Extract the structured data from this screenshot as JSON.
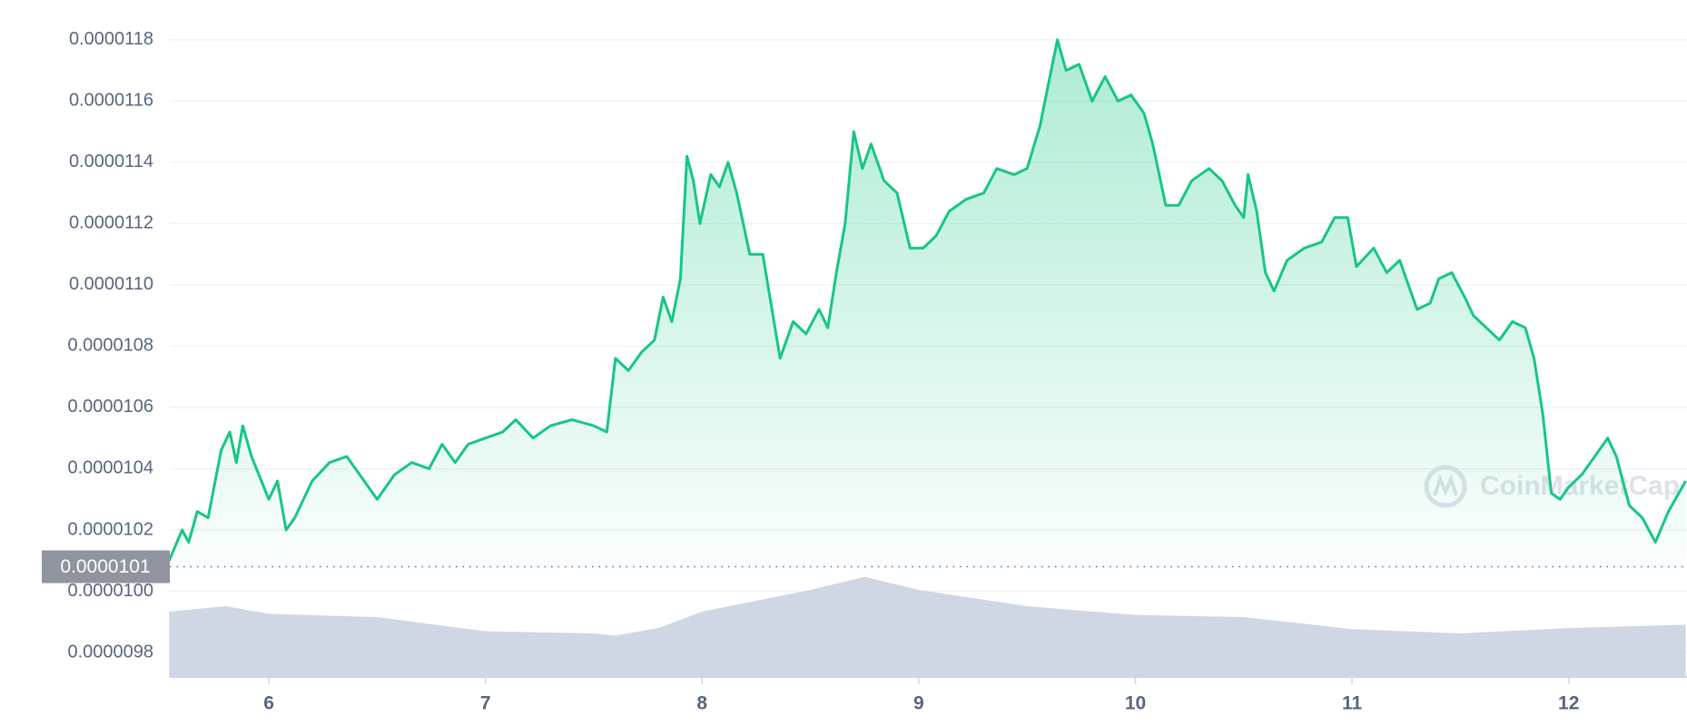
{
  "chart_data": {
    "type": "line",
    "watermark": "CoinMarketCap",
    "xlim": [
      5.543,
      12.546
    ],
    "xticks": [
      6,
      7,
      8,
      9,
      10,
      11,
      12
    ],
    "ylim": [
      9.72e-06,
      1.193e-05
    ],
    "yticks": [
      9.8e-06,
      {
        "value": 1e-05,
        "label": "0.0000100"
      },
      1.02e-05,
      1.04e-05,
      1.06e-05,
      1.08e-05,
      {
        "value": 1.1e-05,
        "label": "0.0000110"
      },
      1.12e-05,
      1.14e-05,
      1.16e-05,
      1.18e-05
    ],
    "grid": true,
    "current_price": {
      "value": 1.008e-05,
      "label": "0.0000101"
    },
    "price": {
      "color": "#16c784",
      "x": [
        5.54,
        5.57,
        5.6,
        5.63,
        5.67,
        5.72,
        5.78,
        5.82,
        5.85,
        5.88,
        5.92,
        6.0,
        6.04,
        6.08,
        6.12,
        6.2,
        6.28,
        6.36,
        6.42,
        6.5,
        6.58,
        6.66,
        6.74,
        6.8,
        6.86,
        6.92,
        7.0,
        7.08,
        7.14,
        7.22,
        7.3,
        7.4,
        7.5,
        7.56,
        7.6,
        7.66,
        7.72,
        7.78,
        7.82,
        7.86,
        7.9,
        7.93,
        7.96,
        7.99,
        8.04,
        8.08,
        8.12,
        8.16,
        8.22,
        8.28,
        8.36,
        8.42,
        8.48,
        8.54,
        8.58,
        8.62,
        8.66,
        8.7,
        8.74,
        8.78,
        8.84,
        8.9,
        8.96,
        9.02,
        9.08,
        9.14,
        9.22,
        9.3,
        9.36,
        9.44,
        9.5,
        9.56,
        9.6,
        9.64,
        9.68,
        9.74,
        9.8,
        9.86,
        9.92,
        9.98,
        10.04,
        10.08,
        10.14,
        10.2,
        10.26,
        10.34,
        10.4,
        10.46,
        10.5,
        10.52,
        10.56,
        10.6,
        10.64,
        10.7,
        10.78,
        10.86,
        10.92,
        10.98,
        11.02,
        11.1,
        11.16,
        11.22,
        11.26,
        11.3,
        11.36,
        11.4,
        11.46,
        11.52,
        11.56,
        11.62,
        11.68,
        11.74,
        11.8,
        11.84,
        11.88,
        11.92,
        11.96,
        12.0,
        12.06,
        12.12,
        12.18,
        12.22,
        12.28,
        12.34,
        12.4,
        12.46,
        12.54
      ],
      "values": [
        1.01e-05,
        1.015e-05,
        1.02e-05,
        1.016e-05,
        1.026e-05,
        1.024e-05,
        1.046e-05,
        1.052e-05,
        1.042e-05,
        1.054e-05,
        1.044e-05,
        1.03e-05,
        1.036e-05,
        1.02e-05,
        1.024e-05,
        1.036e-05,
        1.042e-05,
        1.044e-05,
        1.038e-05,
        1.03e-05,
        1.038e-05,
        1.042e-05,
        1.04e-05,
        1.048e-05,
        1.042e-05,
        1.048e-05,
        1.05e-05,
        1.052e-05,
        1.056e-05,
        1.05e-05,
        1.054e-05,
        1.056e-05,
        1.054e-05,
        1.052e-05,
        1.076e-05,
        1.072e-05,
        1.078e-05,
        1.082e-05,
        1.096e-05,
        1.088e-05,
        1.102e-05,
        1.142e-05,
        1.134e-05,
        1.12e-05,
        1.136e-05,
        1.132e-05,
        1.14e-05,
        1.13e-05,
        1.11e-05,
        1.11e-05,
        1.076e-05,
        1.088e-05,
        1.084e-05,
        1.092e-05,
        1.086e-05,
        1.104e-05,
        1.12e-05,
        1.15e-05,
        1.138e-05,
        1.146e-05,
        1.134e-05,
        1.13e-05,
        1.112e-05,
        1.112e-05,
        1.116e-05,
        1.124e-05,
        1.128e-05,
        1.13e-05,
        1.138e-05,
        1.136e-05,
        1.138e-05,
        1.152e-05,
        1.166e-05,
        1.18e-05,
        1.17e-05,
        1.172e-05,
        1.16e-05,
        1.168e-05,
        1.16e-05,
        1.162e-05,
        1.156e-05,
        1.146e-05,
        1.126e-05,
        1.126e-05,
        1.134e-05,
        1.138e-05,
        1.134e-05,
        1.126e-05,
        1.122e-05,
        1.136e-05,
        1.124e-05,
        1.104e-05,
        1.098e-05,
        1.108e-05,
        1.112e-05,
        1.114e-05,
        1.122e-05,
        1.122e-05,
        1.106e-05,
        1.112e-05,
        1.104e-05,
        1.108e-05,
        1.1e-05,
        1.092e-05,
        1.094e-05,
        1.102e-05,
        1.104e-05,
        1.096e-05,
        1.09e-05,
        1.086e-05,
        1.082e-05,
        1.088e-05,
        1.086e-05,
        1.076e-05,
        1.058e-05,
        1.032e-05,
        1.03e-05,
        1.034e-05,
        1.038e-05,
        1.044e-05,
        1.05e-05,
        1.044e-05,
        1.028e-05,
        1.024e-05,
        1.016e-05,
        1.026e-05,
        1.036e-05
      ]
    },
    "volume": {
      "color": "#cfd6e4",
      "ylim": [
        0,
        100
      ],
      "x": [
        5.54,
        5.8,
        6.0,
        6.5,
        7.0,
        7.5,
        7.6,
        7.8,
        8.0,
        8.5,
        8.75,
        9.0,
        9.5,
        10.0,
        10.5,
        11.0,
        11.5,
        12.0,
        12.54
      ],
      "values": [
        60,
        65,
        58,
        55,
        42,
        40,
        38,
        45,
        60,
        80,
        92,
        80,
        65,
        57,
        55,
        44,
        40,
        45,
        48
      ]
    }
  }
}
